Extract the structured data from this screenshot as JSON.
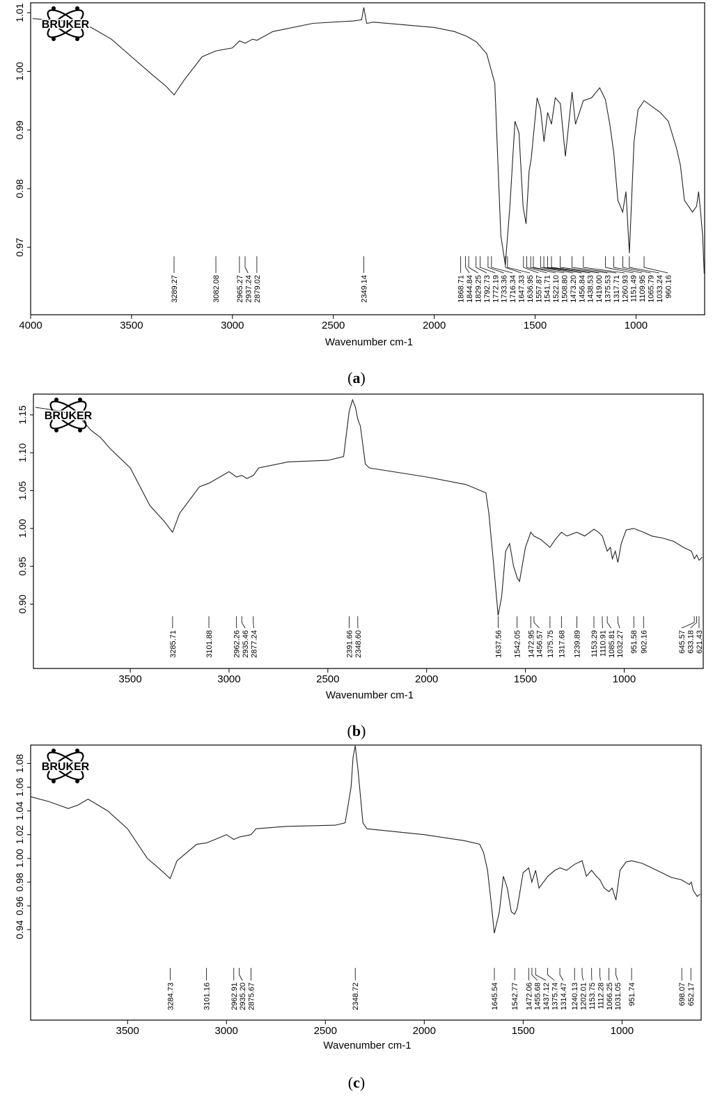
{
  "logo_text": "BRUKER",
  "panel_labels": [
    "a",
    "b",
    "c"
  ],
  "chart_data": [
    {
      "type": "line",
      "panel": "a",
      "xlabel": "Wavenumber cm-1",
      "xlim": [
        4000,
        660
      ],
      "ylim": [
        0.9585,
        1.0117
      ],
      "x_ticks": [
        4000,
        3500,
        3000,
        2500,
        2000,
        1500,
        1000
      ],
      "y_ticks": [
        0.97,
        0.98,
        0.99,
        1.0,
        1.01
      ],
      "y_tick_labels": [
        "0.97",
        "0.98",
        "0.99",
        "1.00",
        "1.01"
      ],
      "series": [
        {
          "x": [
            3990,
            3800,
            3700,
            3600,
            3500,
            3400,
            3330,
            3289,
            3240,
            3150,
            3082,
            3000,
            2965,
            2937,
            2900,
            2879,
            2800,
            2600,
            2400,
            2360,
            2349,
            2335,
            2300,
            2000,
            1900,
            1840,
            1790,
            1740,
            1700,
            1685,
            1670,
            1648,
            1625,
            1600,
            1580,
            1560,
            1545,
            1530,
            1520,
            1490,
            1473,
            1456,
            1438,
            1419,
            1400,
            1375,
            1350,
            1317,
            1300,
            1261,
            1220,
            1180,
            1152,
            1130,
            1110,
            1090,
            1066,
            1050,
            1033,
            1010,
            990,
            960,
            920,
            880,
            840,
            800,
            780,
            760,
            720,
            700,
            690,
            680,
            670,
            662
          ],
          "y": [
            1.009,
            1.0085,
            1.0075,
            1.0055,
            1.0025,
            0.9995,
            0.9975,
            0.996,
            0.9985,
            1.0025,
            1.0035,
            1.004,
            1.0052,
            1.0048,
            1.0055,
            1.0053,
            1.0068,
            1.0082,
            1.0086,
            1.0088,
            1.0109,
            1.0082,
            1.0084,
            1.0075,
            1.0068,
            1.006,
            1.005,
            1.003,
            0.998,
            0.985,
            0.972,
            0.967,
            0.977,
            0.9915,
            0.9895,
            0.977,
            0.974,
            0.983,
            0.985,
            0.9955,
            0.9935,
            0.988,
            0.993,
            0.991,
            0.9955,
            0.9945,
            0.9855,
            0.9965,
            0.991,
            0.995,
            0.9955,
            0.9972,
            0.9952,
            0.991,
            0.986,
            0.978,
            0.976,
            0.9795,
            0.969,
            0.988,
            0.9935,
            0.995,
            0.994,
            0.993,
            0.9915,
            0.987,
            0.984,
            0.978,
            0.976,
            0.977,
            0.9795,
            0.976,
            0.972,
            0.9655
          ]
        }
      ],
      "peaks": [
        {
          "x": 3289.27,
          "label": "3289.27"
        },
        {
          "x": 3082.08,
          "label": "3082.08"
        },
        {
          "x": 2965.27,
          "label": "2965.27"
        },
        {
          "x": 2937.24,
          "label": "2937.24"
        },
        {
          "x": 2879.02,
          "label": "2879.02"
        },
        {
          "x": 2349.14,
          "label": "2349.14"
        },
        {
          "x": 1868.71,
          "label": "1868.71"
        },
        {
          "x": 1844.84,
          "label": "1844.84"
        },
        {
          "x": 1829.25,
          "label": "1829.25"
        },
        {
          "x": 1792.73,
          "label": "1792.73"
        },
        {
          "x": 1772.19,
          "label": "1772.19"
        },
        {
          "x": 1733.36,
          "label": "1733.36"
        },
        {
          "x": 1716.34,
          "label": "1716.34"
        },
        {
          "x": 1647.33,
          "label": "1647.33"
        },
        {
          "x": 1636.95,
          "label": "1636.95"
        },
        {
          "x": 1557.87,
          "label": "1557.87"
        },
        {
          "x": 1541.71,
          "label": "1541.71"
        },
        {
          "x": 1522.1,
          "label": "1522.10"
        },
        {
          "x": 1508.8,
          "label": "1508.80"
        },
        {
          "x": 1473.2,
          "label": "1473.20"
        },
        {
          "x": 1456.84,
          "label": "1456.84"
        },
        {
          "x": 1438.53,
          "label": "1438.53"
        },
        {
          "x": 1419.0,
          "label": "1419.00"
        },
        {
          "x": 1375.53,
          "label": "1375.53"
        },
        {
          "x": 1317.71,
          "label": "1317.71"
        },
        {
          "x": 1260.93,
          "label": "1260.93"
        },
        {
          "x": 1151.49,
          "label": "1151.49"
        },
        {
          "x": 1109.95,
          "label": "1109.95"
        },
        {
          "x": 1065.79,
          "label": "1065.79"
        },
        {
          "x": 1033.24,
          "label": "1033.24"
        },
        {
          "x": 960.16,
          "label": "960.16"
        }
      ]
    },
    {
      "type": "line",
      "panel": "b",
      "xlabel": "Wavenumber cm-1",
      "xlim": [
        3990,
        600
      ],
      "ylim": [
        0.815,
        1.1775
      ],
      "x_ticks": [
        3500,
        3000,
        2500,
        2000,
        1500,
        1000
      ],
      "y_ticks": [
        0.9,
        0.95,
        1.0,
        1.05,
        1.1,
        1.15
      ],
      "y_tick_labels": [
        "0.90",
        "0.95",
        "1.00",
        "1.05",
        "1.10",
        "1.15"
      ],
      "series": [
        {
          "x": [
            3980,
            3850,
            3750,
            3700,
            3650,
            3600,
            3500,
            3400,
            3330,
            3286,
            3250,
            3150,
            3100,
            3000,
            2962,
            2935,
            2910,
            2877,
            2850,
            2700,
            2500,
            2420,
            2392,
            2375,
            2360,
            2349,
            2335,
            2310,
            2290,
            2000,
            1800,
            1700,
            1685,
            1660,
            1638,
            1620,
            1600,
            1580,
            1560,
            1542,
            1530,
            1500,
            1473,
            1457,
            1420,
            1376,
            1350,
            1318,
            1290,
            1240,
            1200,
            1153,
            1130,
            1111,
            1086,
            1070,
            1060,
            1045,
            1032,
            1015,
            990,
            952,
            902,
            860,
            800,
            750,
            700,
            660,
            645,
            633,
            621,
            605
          ],
          "y": [
            1.16,
            1.155,
            1.145,
            1.13,
            1.12,
            1.105,
            1.08,
            1.03,
            1.01,
            0.995,
            1.02,
            1.055,
            1.06,
            1.075,
            1.068,
            1.07,
            1.066,
            1.07,
            1.08,
            1.088,
            1.09,
            1.095,
            1.155,
            1.17,
            1.16,
            1.145,
            1.135,
            1.085,
            1.08,
            1.068,
            1.058,
            1.047,
            1.02,
            0.95,
            0.885,
            0.91,
            0.97,
            0.98,
            0.95,
            0.935,
            0.93,
            0.975,
            0.995,
            0.99,
            0.985,
            0.975,
            0.985,
            0.995,
            0.99,
            0.995,
            0.99,
            0.999,
            0.995,
            0.99,
            0.97,
            0.975,
            0.96,
            0.97,
            0.955,
            0.98,
            0.998,
            1.0,
            0.995,
            0.99,
            0.987,
            0.983,
            0.975,
            0.97,
            0.96,
            0.965,
            0.958,
            0.962
          ]
        }
      ],
      "peaks": [
        {
          "x": 3285.71,
          "label": "3285.71"
        },
        {
          "x": 3101.88,
          "label": "3101.88"
        },
        {
          "x": 2962.26,
          "label": "2962.26"
        },
        {
          "x": 2935.46,
          "label": "2935.46"
        },
        {
          "x": 2877.24,
          "label": "2877.24"
        },
        {
          "x": 2391.66,
          "label": "2391.66"
        },
        {
          "x": 2348.6,
          "label": "2348.60"
        },
        {
          "x": 1637.56,
          "label": "1637.56"
        },
        {
          "x": 1542.05,
          "label": "1542.05"
        },
        {
          "x": 1472.95,
          "label": "1472.95"
        },
        {
          "x": 1456.57,
          "label": "1456.57"
        },
        {
          "x": 1375.75,
          "label": "1375.75"
        },
        {
          "x": 1317.68,
          "label": "1317.68"
        },
        {
          "x": 1239.89,
          "label": "1239.89"
        },
        {
          "x": 1153.29,
          "label": "1153.29"
        },
        {
          "x": 1110.91,
          "label": "1110.91"
        },
        {
          "x": 1085.81,
          "label": "1085.81"
        },
        {
          "x": 1032.27,
          "label": "1032.27"
        },
        {
          "x": 951.58,
          "label": "951.58"
        },
        {
          "x": 902.16,
          "label": "902.16"
        },
        {
          "x": 645.57,
          "label": "645.57"
        },
        {
          "x": 633.18,
          "label": "633.18"
        },
        {
          "x": 621.43,
          "label": "621.43"
        }
      ]
    },
    {
      "type": "line",
      "panel": "c",
      "xlabel": "Wavenumber cm-1",
      "xlim": [
        3990,
        600
      ],
      "ylim": [
        0.8638,
        1.0955
      ],
      "x_ticks": [
        3500,
        3000,
        2500,
        2000,
        1500,
        1000
      ],
      "y_ticks": [
        0.94,
        0.96,
        0.98,
        1.0,
        1.02,
        1.04,
        1.06,
        1.08
      ],
      "y_tick_labels": [
        "0.94",
        "0.96",
        "0.98",
        "1.00",
        "1.02",
        "1.04",
        "1.06",
        "1.08"
      ],
      "series": [
        {
          "x": [
            3990,
            3900,
            3800,
            3750,
            3700,
            3650,
            3600,
            3500,
            3400,
            3330,
            3285,
            3250,
            3150,
            3101,
            3000,
            2963,
            2935,
            2876,
            2850,
            2700,
            2450,
            2400,
            2370,
            2360,
            2349,
            2335,
            2310,
            2290,
            2000,
            1800,
            1720,
            1700,
            1680,
            1660,
            1646,
            1620,
            1600,
            1580,
            1560,
            1543,
            1530,
            1500,
            1472,
            1456,
            1437,
            1420,
            1375,
            1340,
            1314,
            1280,
            1240,
            1202,
            1180,
            1154,
            1130,
            1112,
            1090,
            1066,
            1050,
            1031,
            1010,
            980,
            952,
            900,
            850,
            800,
            750,
            700,
            660,
            650,
            640,
            620,
            605
          ],
          "y": [
            1.052,
            1.048,
            1.042,
            1.045,
            1.05,
            1.045,
            1.04,
            1.025,
            1.0,
            0.99,
            0.983,
            0.998,
            1.012,
            1.013,
            1.02,
            1.016,
            1.018,
            1.02,
            1.025,
            1.027,
            1.028,
            1.03,
            1.06,
            1.085,
            1.095,
            1.075,
            1.03,
            1.025,
            1.02,
            1.015,
            1.012,
            1.005,
            0.99,
            0.96,
            0.937,
            0.955,
            0.985,
            0.975,
            0.955,
            0.953,
            0.958,
            0.988,
            0.992,
            0.98,
            0.99,
            0.975,
            0.985,
            0.99,
            0.992,
            0.99,
            0.995,
            0.998,
            0.985,
            0.99,
            0.985,
            0.982,
            0.975,
            0.972,
            0.975,
            0.965,
            0.99,
            0.997,
            0.998,
            0.996,
            0.992,
            0.988,
            0.984,
            0.982,
            0.978,
            0.98,
            0.973,
            0.968,
            0.97
          ]
        }
      ],
      "peaks": [
        {
          "x": 3284.73,
          "label": "3284.73"
        },
        {
          "x": 3101.16,
          "label": "3101.16"
        },
        {
          "x": 2962.91,
          "label": "2962.91"
        },
        {
          "x": 2935.2,
          "label": "2935.20"
        },
        {
          "x": 2875.67,
          "label": "2875.67"
        },
        {
          "x": 2348.72,
          "label": "2348.72"
        },
        {
          "x": 1645.54,
          "label": "1645.54"
        },
        {
          "x": 1542.77,
          "label": "1542.77"
        },
        {
          "x": 1472.06,
          "label": "1472.06"
        },
        {
          "x": 1455.68,
          "label": "1455.68"
        },
        {
          "x": 1437.12,
          "label": "1437.12"
        },
        {
          "x": 1375.74,
          "label": "1375.74"
        },
        {
          "x": 1314.47,
          "label": "1314.47"
        },
        {
          "x": 1240.13,
          "label": "1240.13"
        },
        {
          "x": 1202.01,
          "label": "1202.01"
        },
        {
          "x": 1153.75,
          "label": "1153.75"
        },
        {
          "x": 1112.28,
          "label": "1112.28"
        },
        {
          "x": 1066.25,
          "label": "1066.25"
        },
        {
          "x": 1031.05,
          "label": "1031.05"
        },
        {
          "x": 951.74,
          "label": "951.74"
        },
        {
          "x": 698.07,
          "label": "698.07"
        },
        {
          "x": 652.17,
          "label": "652.17"
        }
      ]
    }
  ]
}
